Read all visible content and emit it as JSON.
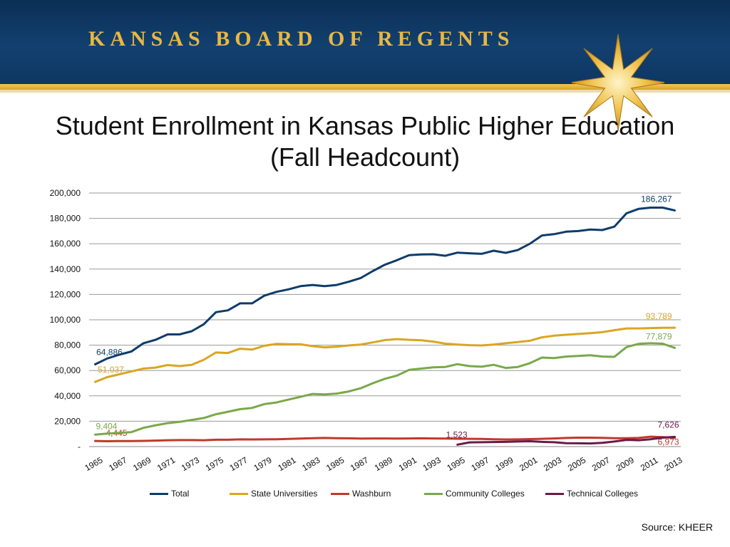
{
  "header": {
    "org_name": "KANSAS BOARD OF REGENTS"
  },
  "title_line1": "Student Enrollment in Kansas Public Higher Education",
  "title_line2": "(Fall Headcount)",
  "source": "Source: KHEER",
  "colors": {
    "banner": "#12406f",
    "gold": "#e9b744",
    "Total": "#0d3c6a",
    "State Universities": "#d9a623",
    "Washburn": "#c0392b",
    "Community Colleges": "#7aa84a",
    "Technical Colleges": "#6b1a48"
  },
  "chart_data": {
    "type": "line",
    "title": "Student Enrollment in Kansas Public Higher Education (Fall Headcount)",
    "xlabel": "",
    "ylabel": "",
    "ylim": [
      0,
      200000
    ],
    "yticks": [
      0,
      20000,
      40000,
      60000,
      80000,
      100000,
      120000,
      140000,
      160000,
      180000,
      200000
    ],
    "ytick_labels": [
      "-",
      "20,000",
      "40,000",
      "60,000",
      "80,000",
      "100,000",
      "120,000",
      "140,000",
      "160,000",
      "180,000",
      "200,000"
    ],
    "x": [
      1965,
      1966,
      1967,
      1968,
      1969,
      1970,
      1971,
      1972,
      1973,
      1974,
      1975,
      1976,
      1977,
      1978,
      1979,
      1980,
      1981,
      1982,
      1983,
      1984,
      1985,
      1986,
      1987,
      1988,
      1989,
      1990,
      1991,
      1992,
      1993,
      1994,
      1995,
      1996,
      1997,
      1998,
      1999,
      2000,
      2001,
      2002,
      2003,
      2004,
      2005,
      2006,
      2007,
      2008,
      2009,
      2010,
      2011,
      2012,
      2013
    ],
    "xtick_labels": [
      "1965",
      "1967",
      "1969",
      "1971",
      "1973",
      "1975",
      "1977",
      "1979",
      "1981",
      "1983",
      "1985",
      "1987",
      "1989",
      "1991",
      "1993",
      "1995",
      "1997",
      "1999",
      "2001",
      "2003",
      "2005",
      "2007",
      "2009",
      "2011",
      "2013"
    ],
    "grid": true,
    "legend_position": "bottom",
    "series": [
      {
        "name": "Total",
        "values": [
          64886,
          69500,
          72500,
          75000,
          81500,
          84200,
          88500,
          88500,
          91000,
          96500,
          106000,
          107500,
          113000,
          113000,
          119000,
          122000,
          124000,
          126500,
          127500,
          126500,
          127500,
          130000,
          133000,
          138500,
          143500,
          147000,
          151000,
          151500,
          151700,
          150500,
          153000,
          152500,
          152000,
          154500,
          152800,
          155000,
          160000,
          166500,
          167500,
          169500,
          170000,
          171200,
          170800,
          173500,
          184000,
          187500,
          188500,
          188500,
          186267
        ],
        "labels": [
          {
            "index": 0,
            "text": "64,886"
          },
          {
            "index": 48,
            "text": "186,267"
          }
        ]
      },
      {
        "name": "State Universities",
        "values": [
          51037,
          54800,
          57000,
          59200,
          61500,
          62300,
          64300,
          63500,
          64500,
          68500,
          74200,
          73800,
          77200,
          76500,
          79500,
          81000,
          80800,
          80700,
          79200,
          78200,
          78800,
          79800,
          80500,
          82200,
          84000,
          84800,
          84200,
          83800,
          82800,
          81200,
          80500,
          80000,
          79800,
          80500,
          81500,
          82500,
          83500,
          86200,
          87500,
          88200,
          88800,
          89500,
          90200,
          91800,
          93200,
          93200,
          93500,
          93700,
          93789
        ],
        "labels": [
          {
            "index": 0,
            "text": "51,037"
          },
          {
            "index": 48,
            "text": "93,789"
          }
        ]
      },
      {
        "name": "Washburn",
        "values": [
          4445,
          4200,
          4300,
          4400,
          4500,
          4700,
          5000,
          5100,
          5100,
          5000,
          5400,
          5400,
          5700,
          5600,
          5700,
          5800,
          6000,
          6300,
          6600,
          6800,
          6600,
          6500,
          6300,
          6400,
          6400,
          6300,
          6400,
          6500,
          6400,
          6300,
          6200,
          6100,
          6000,
          5800,
          5600,
          5700,
          5900,
          6100,
          6400,
          6800,
          7000,
          7000,
          6900,
          6600,
          6600,
          6800,
          7800,
          7400,
          6973
        ],
        "labels": [
          {
            "index": 0,
            "text": "4,445"
          },
          {
            "index": 48,
            "text": "6,973"
          }
        ]
      },
      {
        "name": "Community Colleges",
        "values": [
          9404,
          10200,
          10800,
          11400,
          14800,
          16800,
          18500,
          19500,
          21000,
          22500,
          25500,
          27500,
          29500,
          30500,
          33500,
          34800,
          37000,
          39200,
          41500,
          41200,
          41800,
          43500,
          46000,
          50000,
          53500,
          56000,
          60500,
          61500,
          62500,
          62800,
          65000,
          63500,
          63000,
          64500,
          62000,
          62800,
          65800,
          70200,
          69800,
          71000,
          71500,
          72000,
          71000,
          70800,
          78500,
          81000,
          81500,
          81200,
          77879
        ],
        "labels": [
          {
            "index": 0,
            "text": "9,404"
          },
          {
            "index": 48,
            "text": "77,879"
          }
        ]
      },
      {
        "name": "Technical Colleges",
        "values": [
          null,
          null,
          null,
          null,
          null,
          null,
          null,
          null,
          null,
          null,
          null,
          null,
          null,
          null,
          null,
          null,
          null,
          null,
          null,
          null,
          null,
          null,
          null,
          null,
          null,
          null,
          null,
          null,
          null,
          null,
          1523,
          3300,
          3400,
          3600,
          3700,
          4000,
          4200,
          3700,
          3400,
          2700,
          2600,
          2500,
          2900,
          4000,
          5300,
          5000,
          5800,
          7000,
          7626
        ],
        "labels": [
          {
            "index": 30,
            "text": "1,523"
          },
          {
            "index": 48,
            "text": "7,626"
          }
        ]
      }
    ]
  }
}
